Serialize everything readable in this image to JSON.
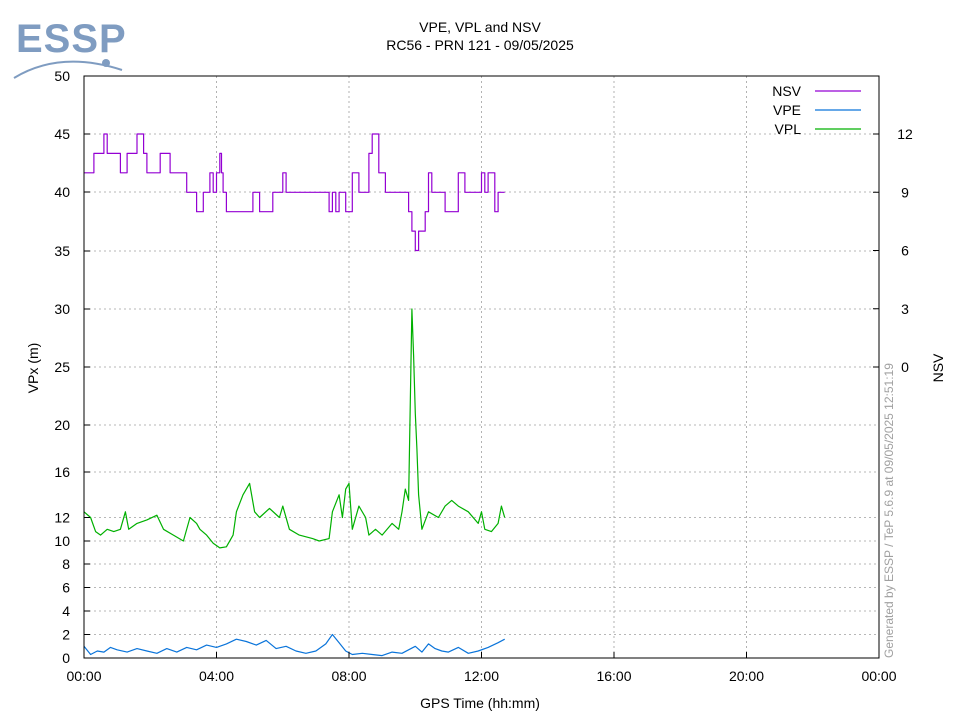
{
  "logo": {
    "text": "ESSP"
  },
  "credit": "Generated by ESSP / TeP 5.6.9 at 09/05/2025 12:51:19",
  "chart_data": {
    "type": "line",
    "title": "VPE, VPL and NSV",
    "subtitle": "RC56 - PRN 121 - 09/05/2025",
    "xlabel": "GPS Time (hh:mm)",
    "ylabel": "VPx (m)",
    "y2label": "NSV",
    "grid": true,
    "legend_position": "top-right",
    "x_range_hours": [
      0,
      24
    ],
    "x_ticks": [
      "00:00",
      "04:00",
      "08:00",
      "12:00",
      "16:00",
      "20:00",
      "00:00"
    ],
    "y_ticks_left": [
      {
        "value": 0,
        "label": "0"
      },
      {
        "value": 2,
        "label": "2"
      },
      {
        "value": 4,
        "label": "4"
      },
      {
        "value": 6,
        "label": "6"
      },
      {
        "value": 8,
        "label": "8"
      },
      {
        "value": 10,
        "label": "10"
      },
      {
        "value": 12,
        "label": "12"
      },
      {
        "value": 16,
        "label": "16"
      },
      {
        "value": 20,
        "label": "20"
      },
      {
        "value": 25,
        "label": "25"
      },
      {
        "value": 30,
        "label": "30"
      },
      {
        "value": 35,
        "label": "35"
      },
      {
        "value": 40,
        "label": "40"
      },
      {
        "value": 45,
        "label": "45"
      },
      {
        "value": 50,
        "label": "50"
      }
    ],
    "y_ticks_right": [
      {
        "value": 0,
        "label": "0"
      },
      {
        "value": 3,
        "label": "3"
      },
      {
        "value": 6,
        "label": "6"
      },
      {
        "value": 9,
        "label": "9"
      },
      {
        "value": 12,
        "label": "12"
      }
    ],
    "series": [
      {
        "name": "NSV",
        "color": "#9400d3",
        "axis": "right",
        "step": true,
        "x": [
          0,
          0.3,
          0.6,
          0.7,
          0.8,
          1.1,
          1.3,
          1.6,
          1.8,
          1.9,
          2.1,
          2.3,
          2.6,
          3.1,
          3.4,
          3.6,
          3.8,
          3.9,
          4.0,
          4.1,
          4.15,
          4.2,
          4.3,
          4.5,
          5.1,
          5.3,
          5.7,
          5.8,
          6.0,
          6.1,
          6.2,
          6.5,
          7.4,
          7.5,
          7.6,
          7.7,
          7.8,
          7.9,
          8.1,
          8.3,
          8.6,
          8.7,
          8.9,
          9.1,
          9.4,
          9.6,
          9.8,
          9.9,
          10.0,
          10.1,
          10.3,
          10.4,
          10.5,
          10.9,
          11.3,
          11.5,
          11.7,
          12.0,
          12.1,
          12.2,
          12.4,
          12.5,
          12.7
        ],
        "y": [
          10,
          11,
          12,
          11,
          11,
          10,
          11,
          12,
          11,
          10,
          10,
          11,
          10,
          9,
          8,
          9,
          10,
          9,
          10,
          11,
          10,
          9,
          8,
          8,
          9,
          8,
          9,
          9,
          10,
          9,
          9,
          9,
          8,
          9,
          8,
          9,
          9,
          8,
          10,
          9,
          11,
          12,
          10,
          9,
          9,
          9,
          8,
          7,
          6,
          7,
          8,
          10,
          9,
          8,
          10,
          9,
          9,
          10,
          9,
          10,
          8,
          9,
          9
        ]
      },
      {
        "name": "VPE",
        "color": "#0a74da",
        "axis": "left",
        "step": false,
        "x": [
          0,
          0.2,
          0.4,
          0.6,
          0.8,
          1.0,
          1.3,
          1.6,
          1.9,
          2.2,
          2.5,
          2.8,
          3.1,
          3.4,
          3.7,
          4.0,
          4.3,
          4.6,
          4.9,
          5.2,
          5.5,
          5.8,
          6.1,
          6.4,
          6.7,
          7.0,
          7.3,
          7.5,
          7.7,
          7.9,
          8.1,
          8.4,
          8.7,
          9.0,
          9.3,
          9.6,
          9.8,
          10.0,
          10.2,
          10.4,
          10.6,
          10.8,
          11.0,
          11.3,
          11.6,
          11.9,
          12.2,
          12.5,
          12.7
        ],
        "y": [
          1.0,
          0.3,
          0.6,
          0.5,
          0.9,
          0.7,
          0.5,
          0.8,
          0.6,
          0.4,
          0.8,
          0.5,
          0.9,
          0.7,
          1.1,
          0.9,
          1.2,
          1.6,
          1.4,
          1.1,
          1.5,
          0.8,
          1.0,
          0.6,
          0.4,
          0.6,
          1.2,
          2.0,
          1.3,
          0.6,
          0.3,
          0.4,
          0.3,
          0.2,
          0.5,
          0.4,
          0.7,
          1.0,
          0.5,
          1.2,
          0.8,
          0.6,
          0.5,
          0.9,
          0.4,
          0.6,
          0.9,
          1.3,
          1.6
        ]
      },
      {
        "name": "VPL",
        "color": "#00b000",
        "axis": "left",
        "step": false,
        "x": [
          0,
          0.2,
          0.35,
          0.5,
          0.7,
          0.9,
          1.1,
          1.25,
          1.35,
          1.6,
          1.9,
          2.2,
          2.4,
          2.7,
          3.0,
          3.2,
          3.4,
          3.5,
          3.7,
          3.9,
          4.1,
          4.3,
          4.5,
          4.6,
          4.8,
          5.0,
          5.15,
          5.3,
          5.6,
          5.9,
          6.0,
          6.2,
          6.5,
          6.9,
          7.1,
          7.4,
          7.5,
          7.7,
          7.8,
          7.9,
          8.0,
          8.1,
          8.3,
          8.5,
          8.6,
          8.8,
          9.0,
          9.3,
          9.5,
          9.6,
          9.7,
          9.8,
          9.85,
          9.9,
          9.95,
          10.0,
          10.05,
          10.1,
          10.2,
          10.4,
          10.7,
          10.9,
          11.1,
          11.3,
          11.6,
          11.9,
          12.0,
          12.1,
          12.3,
          12.5,
          12.6,
          12.7
        ],
        "y": [
          12.5,
          12.0,
          10.8,
          10.5,
          11.0,
          10.8,
          11.0,
          12.5,
          11.0,
          11.5,
          11.8,
          12.2,
          11.0,
          10.5,
          10.0,
          12.0,
          11.5,
          11.0,
          10.5,
          9.8,
          9.4,
          9.5,
          10.5,
          12.5,
          14.0,
          15.0,
          12.5,
          12.0,
          12.8,
          12.0,
          13.0,
          11.0,
          10.5,
          10.2,
          10.0,
          10.2,
          12.5,
          14.0,
          12.0,
          14.5,
          15.0,
          11.0,
          13.0,
          12.0,
          10.5,
          11.0,
          10.5,
          11.5,
          11.0,
          12.5,
          14.5,
          13.5,
          22.0,
          30.0,
          26.0,
          21.0,
          18.0,
          14.0,
          11.0,
          12.5,
          12.0,
          13.0,
          13.5,
          13.0,
          12.5,
          11.5,
          12.5,
          11.0,
          10.8,
          11.5,
          13.0,
          12.0
        ]
      }
    ]
  }
}
